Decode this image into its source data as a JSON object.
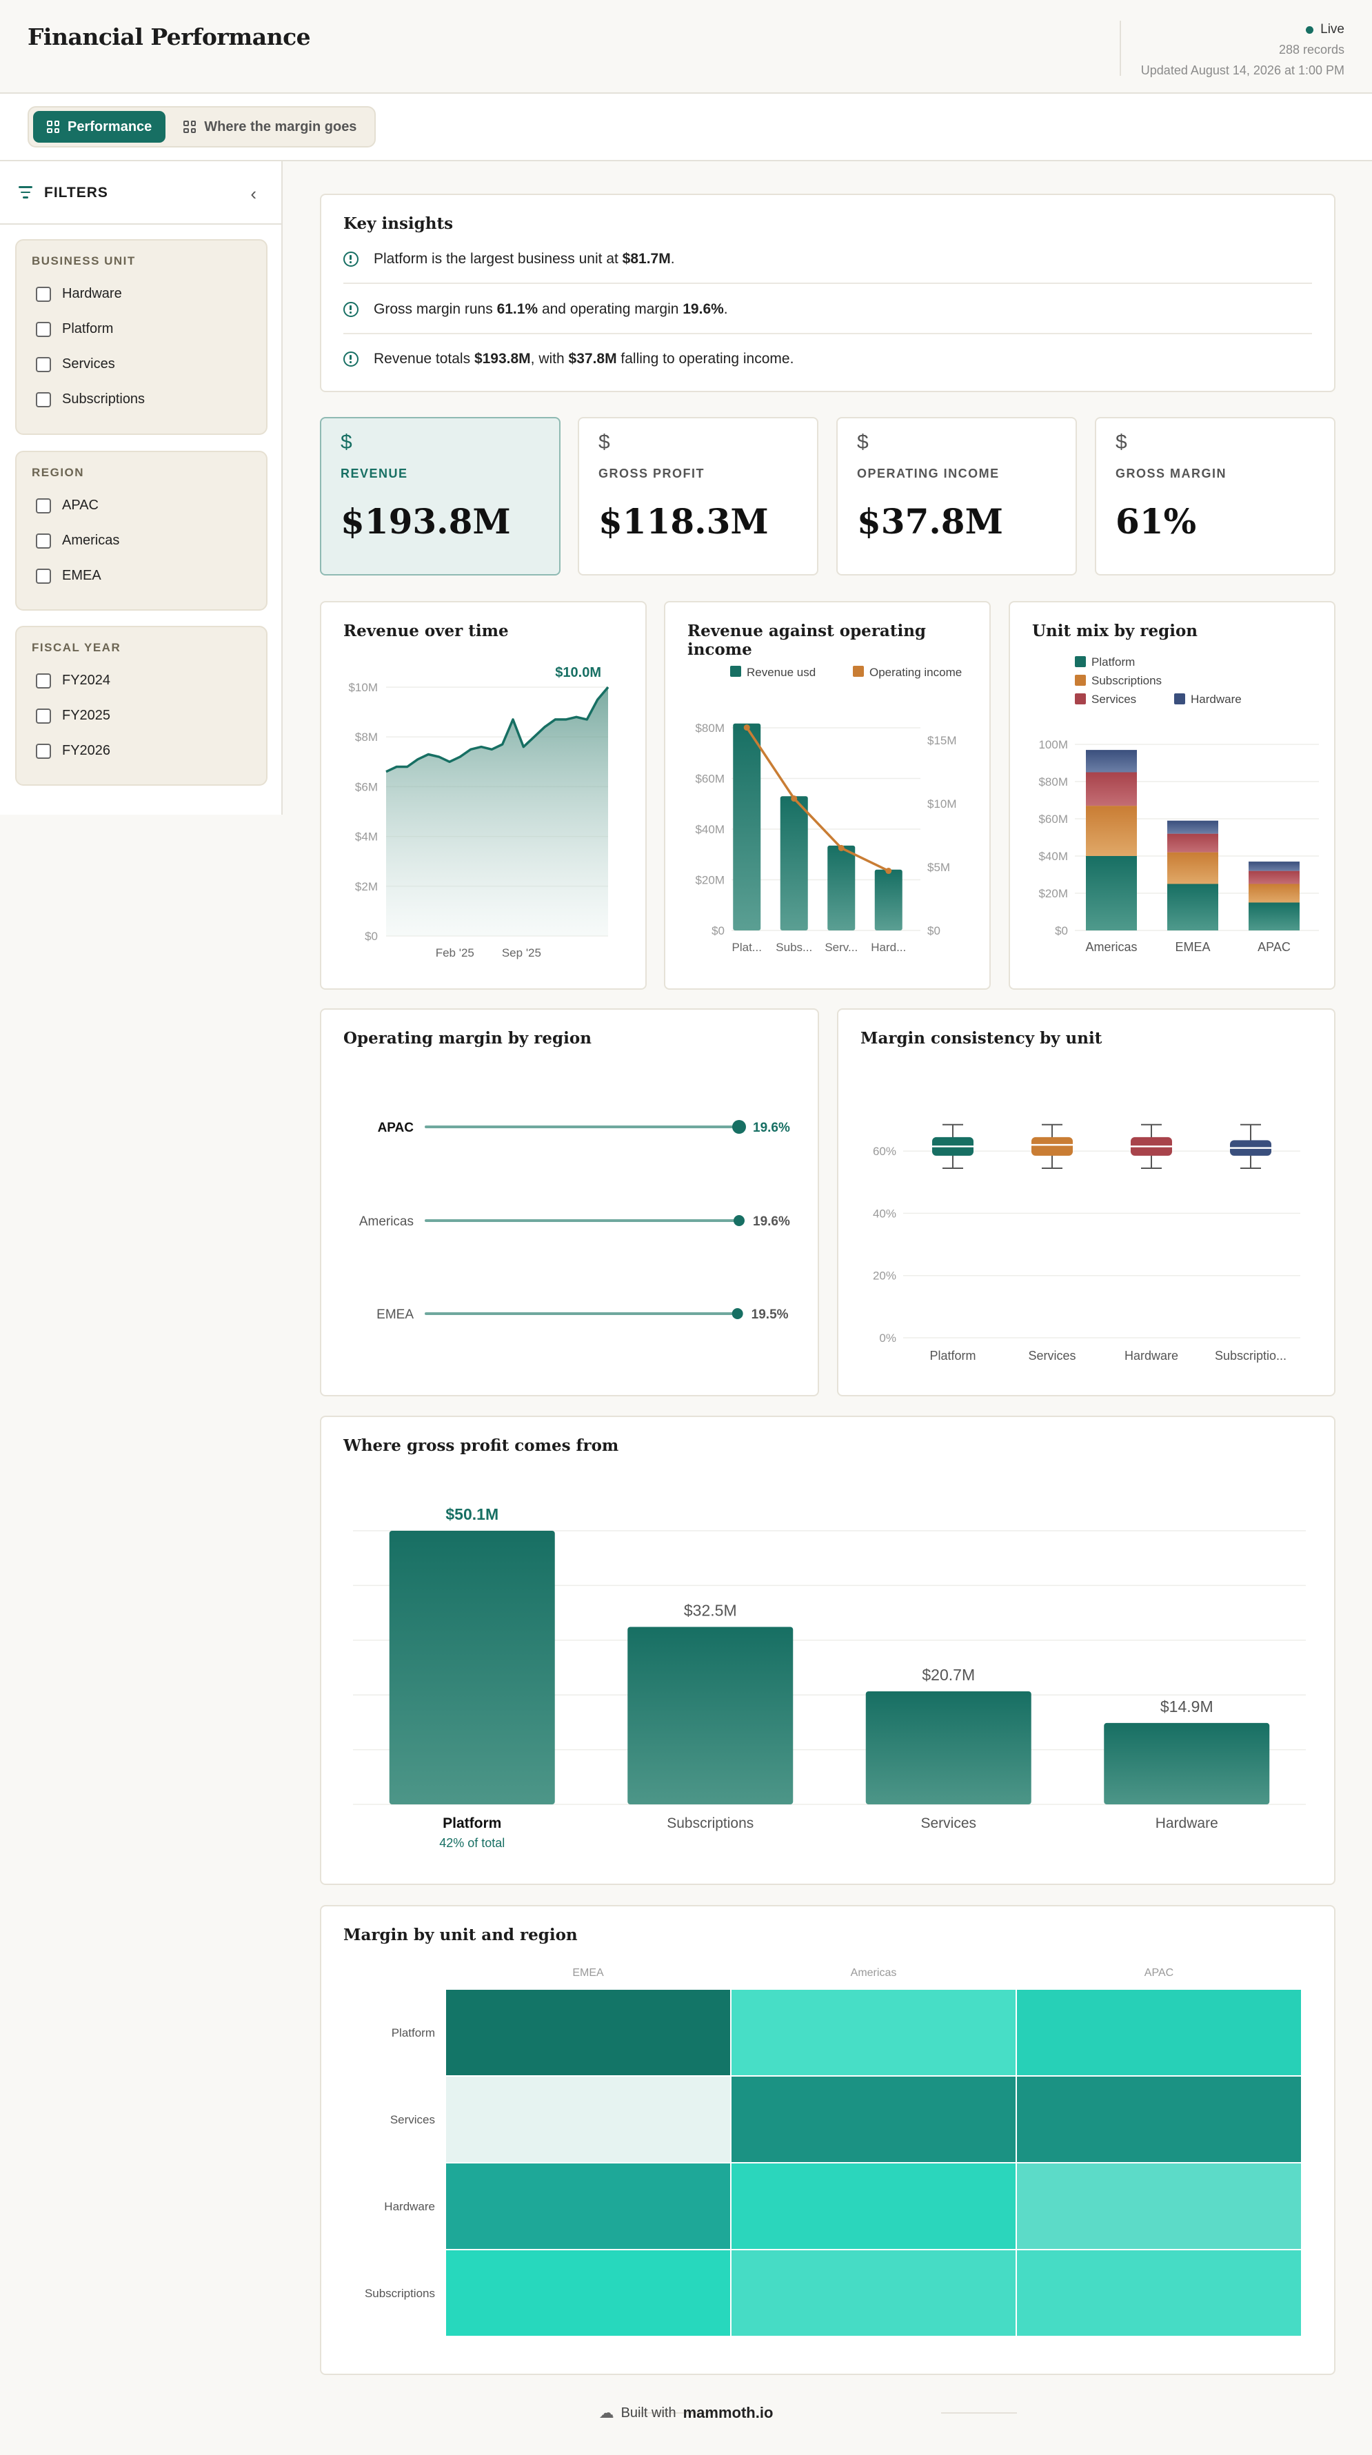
{
  "header": {
    "title": "Financial Performance",
    "status": "Live",
    "records": "288 records",
    "updated": "Updated August 14, 2026 at 1:00 PM"
  },
  "tabs": [
    {
      "label": "Performance",
      "active": true
    },
    {
      "label": "Where the margin goes",
      "active": false
    }
  ],
  "sidebar": {
    "title": "FILTERS",
    "groups": [
      {
        "title": "BUSINESS UNIT",
        "options": [
          "Hardware",
          "Platform",
          "Services",
          "Subscriptions"
        ]
      },
      {
        "title": "REGION",
        "options": [
          "APAC",
          "Americas",
          "EMEA"
        ]
      },
      {
        "title": "FISCAL YEAR",
        "options": [
          "FY2024",
          "FY2025",
          "FY2026"
        ]
      }
    ]
  },
  "insights": {
    "title": "Key insights",
    "items": [
      {
        "pre": "Platform is the largest business unit at ",
        "b1": "$81.7M",
        "mid": ".",
        "b2": "",
        "post": ""
      },
      {
        "pre": "Gross margin runs ",
        "b1": "61.1%",
        "mid": " and operating margin ",
        "b2": "19.6%",
        "post": "."
      },
      {
        "pre": "Revenue totals ",
        "b1": "$193.8M",
        "mid": ", with ",
        "b2": "$37.8M",
        "post": " falling to operating income."
      }
    ]
  },
  "kpis": [
    {
      "icon": "$",
      "label": "REVENUE",
      "value": "$193.8M",
      "active": true
    },
    {
      "icon": "$",
      "label": "GROSS PROFIT",
      "value": "$118.3M",
      "active": false
    },
    {
      "icon": "$",
      "label": "OPERATING INCOME",
      "value": "$37.8M",
      "active": false
    },
    {
      "icon": "$",
      "label": "GROSS MARGIN",
      "value": "61%",
      "active": false
    }
  ],
  "colors": {
    "teal": "#176f63",
    "orange": "#c97d34",
    "red": "#a8434b",
    "navy": "#3a4f7d"
  },
  "charts": {
    "revenue_time": {
      "title": "Revenue over time",
      "chart_data": {
        "type": "area",
        "x_ticks": [
          "Feb '25",
          "Sep '25"
        ],
        "y_ticks": [
          "$0",
          "$2M",
          "$4M",
          "$6M",
          "$8M",
          "$10M"
        ],
        "ylim": [
          0,
          10
        ],
        "values": [
          6.6,
          6.8,
          6.8,
          7.1,
          7.3,
          7.2,
          7.0,
          7.2,
          7.5,
          7.6,
          7.5,
          7.7,
          8.7,
          7.6,
          8.0,
          8.4,
          8.7,
          8.7,
          8.8,
          8.7,
          9.5,
          10.0
        ],
        "end_label": "$10.0M"
      }
    },
    "rev_vs_opinc": {
      "title": "Revenue against operating income",
      "chart_data": {
        "type": "bar",
        "categories": [
          "Plat...",
          "Subs...",
          "Serv...",
          "Hard..."
        ],
        "series": [
          {
            "name": "Revenue usd",
            "values": [
              81.7,
              53.0,
              33.5,
              24.0
            ]
          },
          {
            "name": "Operating income",
            "values": [
              16.0,
              10.4,
              6.5,
              4.7
            ]
          }
        ],
        "y_ticks": [
          "$0",
          "$20M",
          "$40M",
          "$60M",
          "$80M"
        ],
        "y2_ticks": [
          "$0",
          "$5M",
          "$10M",
          "$15M"
        ],
        "ylim": [
          0,
          80
        ],
        "y2lim": [
          0,
          15
        ]
      }
    },
    "unit_mix": {
      "title": "Unit mix by region",
      "chart_data": {
        "type": "bar",
        "stacked": true,
        "categories": [
          "Americas",
          "EMEA",
          "APAC"
        ],
        "series": [
          {
            "name": "Platform",
            "values": [
              40,
              25,
              15
            ]
          },
          {
            "name": "Subscriptions",
            "values": [
              27,
              17,
              10
            ]
          },
          {
            "name": "Services",
            "values": [
              18,
              10,
              7
            ]
          },
          {
            "name": "Hardware",
            "values": [
              12,
              7,
              5
            ]
          }
        ],
        "y_ticks": [
          "$0",
          "$20M",
          "$40M",
          "$60M",
          "$80M",
          "100M"
        ],
        "ylim": [
          0,
          100
        ]
      }
    },
    "op_margin_region": {
      "title": "Operating margin by region",
      "chart_data": {
        "type": "lollipop",
        "categories": [
          "APAC",
          "Americas",
          "EMEA"
        ],
        "values": [
          19.6,
          19.6,
          19.5
        ],
        "labels": [
          "19.6%",
          "19.6%",
          "19.5%"
        ]
      }
    },
    "margin_consistency": {
      "title": "Margin consistency by unit",
      "chart_data": {
        "type": "box",
        "categories": [
          "Platform",
          "Services",
          "Hardware",
          "Subscriptio..."
        ],
        "y_ticks": [
          "0%",
          "20%",
          "40%",
          "60%"
        ],
        "ylim": [
          0,
          70
        ],
        "boxes": [
          {
            "min": 54.5,
            "q1": 58.5,
            "median": 61.5,
            "q3": 64.5,
            "max": 68.5
          },
          {
            "min": 54.5,
            "q1": 58.5,
            "median": 62.0,
            "q3": 64.5,
            "max": 68.5
          },
          {
            "min": 54.5,
            "q1": 58.5,
            "median": 61.5,
            "q3": 64.5,
            "max": 68.5
          },
          {
            "min": 54.5,
            "q1": 58.5,
            "median": 61.0,
            "q3": 63.5,
            "max": 68.5
          }
        ]
      }
    },
    "gross_profit": {
      "title": "Where gross profit comes from",
      "chart_data": {
        "type": "bar",
        "categories": [
          "Platform",
          "Subscriptions",
          "Services",
          "Hardware"
        ],
        "values": [
          50.1,
          32.5,
          20.7,
          14.9
        ],
        "labels": [
          "$50.1M",
          "$32.5M",
          "$20.7M",
          "$14.9M"
        ],
        "share_note": "42% of total",
        "ylim": [
          0,
          50.1
        ]
      }
    },
    "heatmap": {
      "title": "Margin by unit and region",
      "chart_data": {
        "type": "heatmap",
        "columns": [
          "EMEA",
          "Americas",
          "APAC"
        ],
        "rows": [
          "Platform",
          "Services",
          "Hardware",
          "Subscriptions"
        ],
        "colors": [
          [
            "#137567",
            "#47dec6",
            "#27d0b7"
          ],
          [
            "#e6f3f1",
            "#1b9283",
            "#1b9283"
          ],
          [
            "#1ea898",
            "#2bd6bc",
            "#5cdbc8"
          ],
          [
            "#27d8bd",
            "#46dcc5",
            "#46dcc5"
          ]
        ]
      }
    }
  },
  "footer": {
    "prefix": "Built with",
    "brand": "mammoth.io"
  }
}
